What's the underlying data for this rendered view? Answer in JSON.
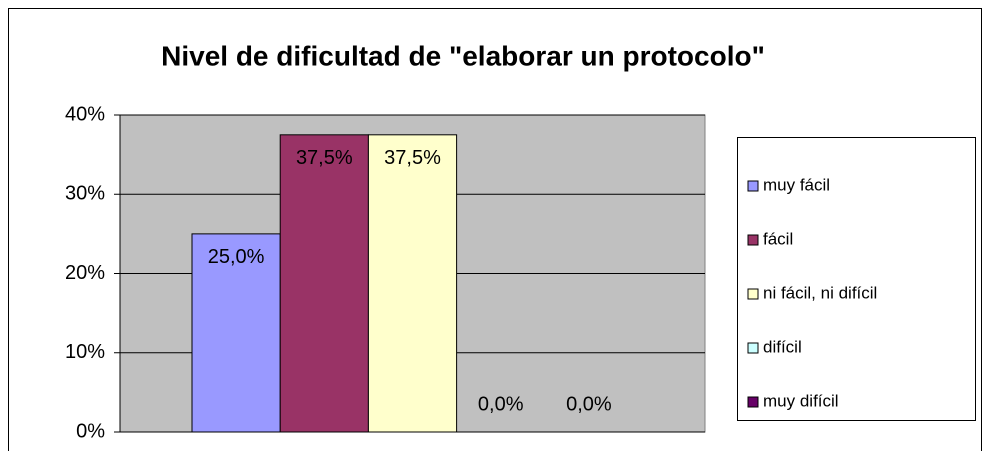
{
  "chart_data": {
    "type": "bar",
    "title": "Nivel de dificultad de \"elaborar un protocolo\"",
    "series": [
      {
        "name": "muy fácil",
        "color": "#9999ff",
        "values": [
          25
        ],
        "value_labels": [
          "25,0%"
        ]
      },
      {
        "name": "fácil",
        "color": "#993366",
        "values": [
          37.5
        ],
        "value_labels": [
          "37,5%"
        ]
      },
      {
        "name": "ni fácil, ni difícil",
        "color": "#ffffcc",
        "values": [
          37.5
        ],
        "value_labels": [
          "37,5%"
        ]
      },
      {
        "name": "difícil",
        "color": "#ccffff",
        "values": [
          0
        ],
        "value_labels": [
          "0,0%"
        ]
      },
      {
        "name": "muy difícil",
        "color": "#660066",
        "values": [
          0
        ],
        "value_labels": [
          "0,0%"
        ]
      }
    ],
    "ylim": [
      0,
      40
    ],
    "yticks": [
      {
        "value": 0,
        "label": "0%"
      },
      {
        "value": 10,
        "label": "10%"
      },
      {
        "value": 20,
        "label": "20%"
      },
      {
        "value": 30,
        "label": "30%"
      },
      {
        "value": 40,
        "label": "40%"
      }
    ],
    "grid": true,
    "plot_background": "#c0c0c0",
    "legend": "right"
  }
}
